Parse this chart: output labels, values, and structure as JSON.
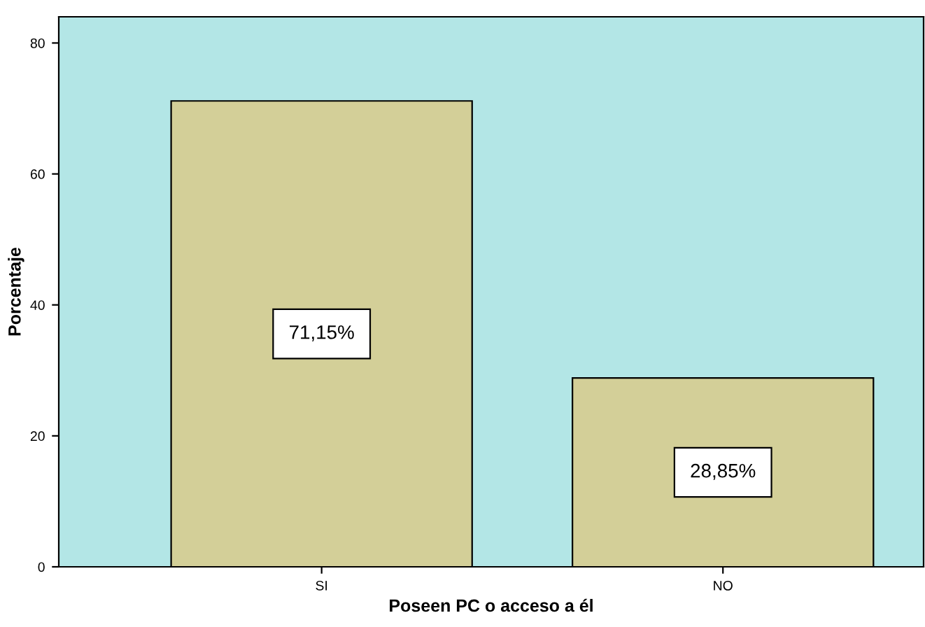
{
  "chart_data": {
    "type": "bar",
    "xlabel": "Poseen PC o acceso a él",
    "ylabel": "Porcentaje",
    "categories": [
      "SI",
      "NO"
    ],
    "values": [
      71.15,
      28.85
    ],
    "value_labels": [
      "71,15%",
      "28,85%"
    ],
    "color": "#d3cf98",
    "ylim": [
      0,
      84
    ],
    "yticks": [
      0,
      20,
      40,
      60,
      80
    ],
    "grid": false,
    "legend": false
  }
}
